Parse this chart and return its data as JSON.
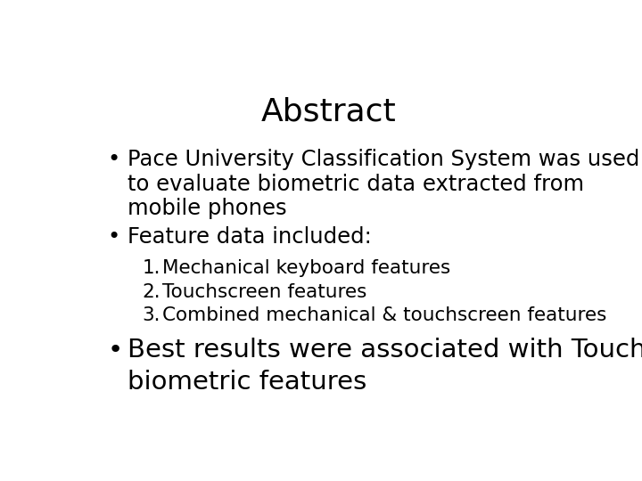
{
  "title": "Abstract",
  "title_fontsize": 26,
  "background_color": "#ffffff",
  "text_color": "#000000",
  "bullet1_line1": "Pace University Classification System was used",
  "bullet1_line2": "to evaluate biometric data extracted from",
  "bullet1_line3": "mobile phones",
  "bullet2": "Feature data included:",
  "numbered_items": [
    "Mechanical keyboard features",
    "Touchscreen features",
    "Combined mechanical & touchscreen features"
  ],
  "bullet3_line1": "Best results were associated with TouchScreen",
  "bullet3_line2": "biometric features",
  "bullet_fontsize": 17.5,
  "numbered_fontsize": 15.5,
  "bullet3_fontsize": 21,
  "bullet_symbol": "•",
  "font_family": "DejaVu Sans Condensed"
}
